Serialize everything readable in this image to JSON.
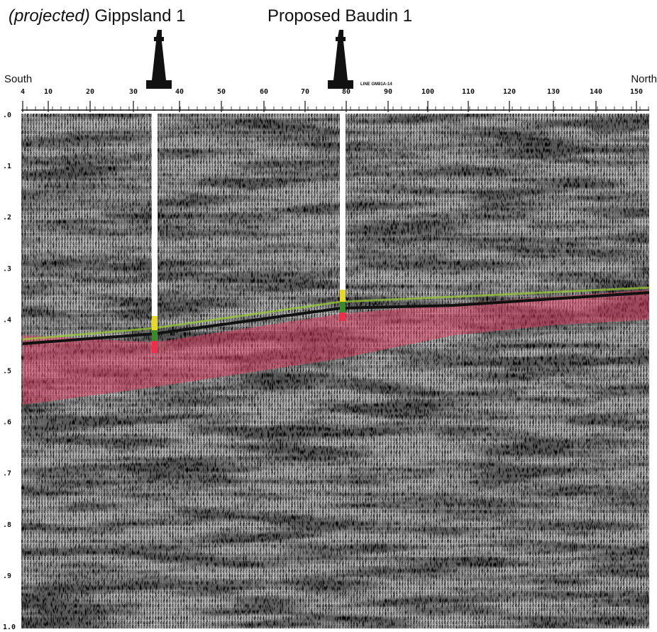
{
  "header": {
    "gippsland": {
      "qualifier": "(projected)",
      "name": "Gippsland 1"
    },
    "baudin": {
      "name": "Proposed Baudin 1"
    }
  },
  "axis": {
    "left_end": "South",
    "right_end": "North",
    "line_label": "LINE GM81A-14",
    "shotpoints": [
      "4",
      "10",
      "20",
      "30",
      "40",
      "50",
      "60",
      "70",
      "80",
      "90",
      "100",
      "110",
      "120",
      "130",
      "140",
      "150"
    ],
    "times": [
      ".0",
      ".1",
      ".2",
      ".3",
      ".4",
      ".5",
      ".6",
      ".7",
      ".8",
      ".9",
      "1.0"
    ]
  }
}
